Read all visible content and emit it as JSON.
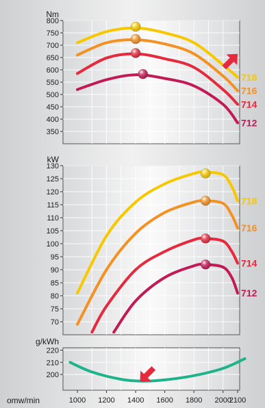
{
  "chart_data": [
    {
      "type": "line",
      "ylabel": "Nm",
      "xlabel": "omw/min",
      "xlim": [
        1000,
        2100
      ],
      "ylim": [
        300,
        800
      ],
      "yticks": [
        350,
        400,
        450,
        500,
        550,
        600,
        650,
        700,
        750,
        800
      ],
      "grid": true,
      "series": [
        {
          "name": "718",
          "color": "#f7c800",
          "x": [
            1000,
            1200,
            1400,
            1600,
            1800,
            2000,
            2100
          ],
          "y": [
            710,
            755,
            770,
            750,
            710,
            620,
            570
          ],
          "marker": [
            1400,
            775
          ]
        },
        {
          "name": "716",
          "color": "#f39122",
          "x": [
            1000,
            1200,
            1400,
            1600,
            1800,
            2000,
            2100
          ],
          "y": [
            660,
            710,
            722,
            705,
            665,
            575,
            515
          ],
          "marker": [
            1400,
            725
          ]
        },
        {
          "name": "714",
          "color": "#e52a3d",
          "x": [
            1000,
            1200,
            1400,
            1600,
            1800,
            2000,
            2100
          ],
          "y": [
            585,
            648,
            665,
            645,
            610,
            520,
            460
          ],
          "marker": [
            1400,
            668
          ]
        },
        {
          "name": "712",
          "color": "#c21a55",
          "x": [
            1000,
            1200,
            1400,
            1600,
            1800,
            2000,
            2100
          ],
          "y": [
            520,
            560,
            580,
            565,
            535,
            460,
            385
          ],
          "marker": [
            1450,
            583
          ]
        }
      ],
      "annotation": {
        "type": "arrow",
        "direction": "up-right",
        "at": [
          2050,
          635
        ],
        "color": "#e52a3d"
      }
    },
    {
      "type": "line",
      "ylabel": "kW",
      "xlabel": "omw/min",
      "xlim": [
        1000,
        2100
      ],
      "ylim": [
        65,
        130
      ],
      "yticks": [
        70,
        75,
        80,
        85,
        90,
        95,
        100,
        105,
        110,
        115,
        120,
        125,
        130
      ],
      "grid": true,
      "series": [
        {
          "name": "718",
          "color": "#f7c800",
          "x": [
            1000,
            1200,
            1400,
            1600,
            1800,
            1880,
            2000,
            2060,
            2100
          ],
          "y": [
            81,
            103,
            116,
            123,
            127,
            127.5,
            126.5,
            122,
            116.5
          ],
          "marker": [
            1880,
            127
          ]
        },
        {
          "name": "716",
          "color": "#f39122",
          "x": [
            1000,
            1200,
            1400,
            1600,
            1800,
            1880,
            2000,
            2060,
            2100
          ],
          "y": [
            69,
            90,
            104,
            112,
            116,
            116.5,
            115.5,
            111,
            106
          ],
          "marker": [
            1880,
            116.5
          ]
        },
        {
          "name": "714",
          "color": "#e52a3d",
          "x": [
            1100,
            1200,
            1400,
            1600,
            1800,
            1880,
            2000,
            2060,
            2100
          ],
          "y": [
            66,
            76,
            90,
            97,
            101.5,
            102,
            101,
            97,
            92.5
          ],
          "marker": [
            1880,
            102
          ]
        },
        {
          "name": "712",
          "color": "#c21a55",
          "x": [
            1250,
            1400,
            1600,
            1800,
            1880,
            2000,
            2060,
            2100
          ],
          "y": [
            66,
            78,
            87,
            91.5,
            92,
            91,
            87,
            81
          ],
          "marker": [
            1880,
            92
          ]
        }
      ]
    },
    {
      "type": "line",
      "ylabel": "g/kWh",
      "xlabel": "omw/min",
      "xlim": [
        1000,
        2100
      ],
      "ylim": [
        187,
        222
      ],
      "yticks": [
        200,
        210,
        220
      ],
      "xticks": [
        1000,
        1200,
        1400,
        1600,
        1800,
        2000,
        2100
      ],
      "grid": true,
      "series": [
        {
          "name": "",
          "color": "#1eb38a",
          "x": [
            950,
            1100,
            1300,
            1450,
            1600,
            1800,
            2000,
            2150
          ],
          "y": [
            210,
            202,
            196,
            194.5,
            195.5,
            199,
            205,
            213
          ]
        }
      ],
      "annotation": {
        "type": "arrow",
        "direction": "down-left",
        "at": [
          1480,
          200
        ],
        "color": "#e52a3d"
      }
    }
  ]
}
